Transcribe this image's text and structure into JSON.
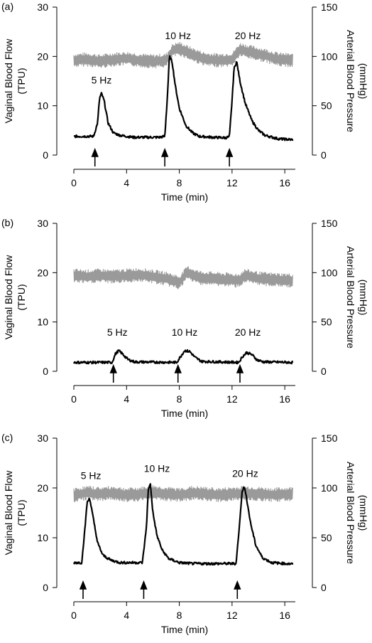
{
  "chart_data": [
    {
      "type": "line",
      "panel_label": "(a)",
      "xlabel": "Time (min)",
      "ylabel_left": [
        "Vaginal Blood Flow",
        "(TPU)"
      ],
      "ylabel_right": [
        "Arterial Blood Pressure",
        "(mmHg)"
      ],
      "xlim": [
        0,
        16.8
      ],
      "ylim_left": [
        0,
        30
      ],
      "ylim_right": [
        0,
        150
      ],
      "xticks": [
        "0",
        "4",
        "8",
        "12",
        "16"
      ],
      "yticks_left": [
        "0",
        "10",
        "20",
        "30"
      ],
      "yticks_right": [
        "0",
        "50",
        "100",
        "150"
      ],
      "annotations": [
        {
          "text": "5 Hz",
          "x": 2.1,
          "y": 14.5
        },
        {
          "text": "10 Hz",
          "x": 7.9,
          "y": 23.5
        },
        {
          "text": "20 Hz",
          "x": 13.2,
          "y": 23.5
        }
      ],
      "stimulus_arrows_min": [
        1.6,
        6.9,
        11.8
      ],
      "series": [
        {
          "axis": "left",
          "color": "#000000",
          "x": [
            0.0,
            1.5,
            1.8,
            1.95,
            2.1,
            2.3,
            2.6,
            3.0,
            3.5,
            4.5,
            6.5,
            6.9,
            7.1,
            7.25,
            7.45,
            7.7,
            8.0,
            8.5,
            9.0,
            9.5,
            10.5,
            11.5,
            11.8,
            12.0,
            12.15,
            12.35,
            12.6,
            13.0,
            13.5,
            14.0,
            14.5,
            15.5,
            16.6
          ],
          "y": [
            3.8,
            3.8,
            6.5,
            11.5,
            12.5,
            11.0,
            6.5,
            4.5,
            4.0,
            3.6,
            3.6,
            3.8,
            12.0,
            20.0,
            19.0,
            14.0,
            9.5,
            6.0,
            4.5,
            3.8,
            3.6,
            3.5,
            3.7,
            11.0,
            17.5,
            19.0,
            15.0,
            10.5,
            7.0,
            5.0,
            4.0,
            3.3,
            3.1
          ]
        },
        {
          "axis": "right",
          "color": "#9a9a9a",
          "x": [
            0.0,
            1.0,
            2.0,
            3.0,
            4.0,
            5.0,
            6.0,
            7.0,
            7.5,
            8.0,
            9.0,
            10.0,
            11.0,
            12.0,
            12.6,
            13.5,
            14.5,
            15.5,
            16.6
          ],
          "y": [
            96,
            97,
            95,
            97,
            98,
            96,
            95,
            96,
            106,
            108,
            102,
            97,
            96,
            97,
            107,
            104,
            101,
            97,
            96
          ]
        }
      ]
    },
    {
      "type": "line",
      "panel_label": "(b)",
      "xlabel": "Time (min)",
      "ylabel_left": [
        "Vaginal Blood Flow",
        "(TPU)"
      ],
      "ylabel_right": [
        "Arterial Blood Pressure",
        "(mmHg)"
      ],
      "xlim": [
        0,
        16.8
      ],
      "ylim_left": [
        0,
        30
      ],
      "ylim_right": [
        0,
        150
      ],
      "xticks": [
        "0",
        "4",
        "8",
        "12",
        "16"
      ],
      "yticks_left": [
        "0",
        "10",
        "20",
        "30"
      ],
      "yticks_right": [
        "0",
        "50",
        "100",
        "150"
      ],
      "annotations": [
        {
          "text": "5 Hz",
          "x": 3.3,
          "y": 7.2
        },
        {
          "text": "10 Hz",
          "x": 8.4,
          "y": 7.2
        },
        {
          "text": "20 Hz",
          "x": 13.2,
          "y": 7.2
        }
      ],
      "stimulus_arrows_min": [
        3.0,
        7.9,
        12.6
      ],
      "series": [
        {
          "axis": "left",
          "color": "#000000",
          "x": [
            0.0,
            2.9,
            3.15,
            3.4,
            3.7,
            4.1,
            4.6,
            7.8,
            8.1,
            8.4,
            8.8,
            9.2,
            9.7,
            12.5,
            12.8,
            13.1,
            13.5,
            13.9,
            14.4,
            16.6
          ],
          "y": [
            1.8,
            1.8,
            3.5,
            4.2,
            3.5,
            2.4,
            1.9,
            1.8,
            3.0,
            4.2,
            4.0,
            2.8,
            2.0,
            1.8,
            3.0,
            3.8,
            3.4,
            2.3,
            1.9,
            1.8
          ]
        },
        {
          "axis": "right",
          "color": "#9a9a9a",
          "x": [
            0.0,
            1.0,
            2.0,
            3.0,
            4.0,
            5.0,
            6.0,
            7.0,
            8.0,
            8.6,
            9.5,
            10.5,
            11.5,
            12.5,
            13.0,
            14.0,
            15.0,
            16.6
          ],
          "y": [
            97,
            96,
            97,
            96,
            97,
            98,
            96,
            94,
            90,
            100,
            95,
            94,
            93,
            92,
            97,
            94,
            93,
            92
          ]
        }
      ]
    },
    {
      "type": "line",
      "panel_label": "(c)",
      "xlabel": "Time (min)",
      "ylabel_left": [
        "Vaginal Blood Flow",
        "(TPU)"
      ],
      "ylabel_right": [
        "Arterial Blood Pressure",
        "(mmHg)"
      ],
      "xlim": [
        0,
        16.8
      ],
      "ylim_left": [
        0,
        30
      ],
      "ylim_right": [
        0,
        150
      ],
      "xticks": [
        "0",
        "4",
        "8",
        "12",
        "16"
      ],
      "yticks_left": [
        "0",
        "10",
        "20",
        "30"
      ],
      "yticks_right": [
        "0",
        "50",
        "100",
        "150"
      ],
      "annotations": [
        {
          "text": "5 Hz",
          "x": 1.3,
          "y": 21.8
        },
        {
          "text": "10 Hz",
          "x": 6.3,
          "y": 23.2
        },
        {
          "text": "20 Hz",
          "x": 13.0,
          "y": 22.2
        }
      ],
      "stimulus_arrows_min": [
        0.7,
        5.3,
        12.4
      ],
      "series": [
        {
          "axis": "left",
          "color": "#000000",
          "x": [
            0.0,
            0.6,
            0.85,
            1.0,
            1.2,
            1.5,
            1.8,
            2.2,
            2.8,
            3.5,
            5.2,
            5.5,
            5.65,
            5.8,
            6.0,
            6.3,
            6.7,
            7.2,
            8.0,
            9.0,
            12.3,
            12.55,
            12.75,
            12.9,
            13.1,
            13.4,
            13.8,
            14.3,
            15.0,
            16.6
          ],
          "y": [
            5.0,
            5.0,
            12.0,
            17.0,
            18.0,
            13.5,
            9.0,
            6.5,
            5.5,
            5.0,
            5.0,
            12.0,
            19.5,
            21.0,
            15.0,
            10.5,
            7.5,
            5.8,
            5.0,
            4.8,
            4.8,
            12.0,
            19.0,
            20.5,
            18.0,
            13.0,
            8.5,
            6.0,
            5.0,
            4.7
          ]
        },
        {
          "axis": "right",
          "color": "#9a9a9a",
          "x": [
            0.0,
            1.0,
            2.0,
            3.0,
            4.0,
            5.0,
            6.0,
            7.0,
            8.0,
            9.0,
            10.0,
            11.0,
            12.0,
            13.0,
            14.0,
            15.0,
            16.6
          ],
          "y": [
            93,
            95,
            94,
            95,
            93,
            94,
            96,
            94,
            93,
            95,
            94,
            93,
            94,
            95,
            94,
            93,
            94
          ]
        }
      ]
    }
  ]
}
